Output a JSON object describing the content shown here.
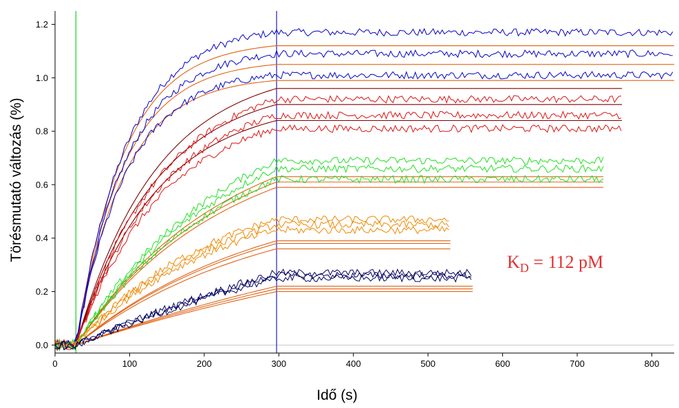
{
  "chart_data": {
    "type": "line",
    "xlabel": "Idő (s)",
    "ylabel": "Törésmutató változás (%)",
    "xlim": [
      0,
      830
    ],
    "ylim": [
      -0.03,
      1.25
    ],
    "xticks": [
      0,
      100,
      200,
      300,
      400,
      500,
      600,
      700,
      800
    ],
    "yticks": [
      0.0,
      0.2,
      0.4,
      0.6,
      0.8,
      1.0,
      1.2
    ],
    "ytick_labels": [
      "0.0",
      "0.2",
      "0.4",
      "0.6",
      "0.8",
      "1.0",
      "1.2"
    ],
    "grid": false,
    "annotation": {
      "main": "K",
      "sub": "D",
      "rest": " = 112 pM"
    },
    "markers": [
      {
        "x": 28,
        "color": "#22cc22"
      },
      {
        "x": 297,
        "color": "#2020b0"
      }
    ],
    "baseline": {
      "y": 0.0,
      "color": "#c8c8c8"
    },
    "colors": {
      "blue": "#0000c8",
      "darkred": "#800000",
      "red": "#dd1111",
      "green": "#22dd22",
      "orange": "#ee8800",
      "fit_orange": "#e06010",
      "navy": "#000060"
    },
    "groups": [
      {
        "color": "blue",
        "fit_color": "fit_orange",
        "x_end": 830,
        "k": 0.0145,
        "k_fit": 0.0155,
        "fit_plateau": [
          1.12,
          1.05,
          0.99
        ],
        "data_plateau": [
          1.17,
          1.09,
          1.01
        ]
      },
      {
        "color": "red",
        "fit_color": "darkred",
        "x_end": 760,
        "k": 0.0085,
        "k_fit": 0.0092,
        "fit_plateau": [
          0.96,
          0.9,
          0.84
        ],
        "data_plateau": [
          0.92,
          0.86,
          0.81
        ]
      },
      {
        "color": "green",
        "fit_color": "fit_orange",
        "x_end": 735,
        "k": 0.0048,
        "k_fit": 0.005,
        "fit_plateau": [
          0.63,
          0.61,
          0.59
        ],
        "data_plateau": [
          0.69,
          0.66,
          0.62
        ]
      },
      {
        "color": "orange",
        "fit_color": "fit_orange",
        "x_end": 530,
        "k": 0.0052,
        "k_fit": 0.004,
        "fit_plateau": [
          0.39,
          0.38,
          0.36
        ],
        "data_plateau": [
          0.47,
          0.45,
          0.43
        ]
      },
      {
        "color": "navy",
        "fit_color": "fit_orange",
        "x_end": 560,
        "k": 0.0017,
        "k_fit": 0.0016,
        "fit_plateau": [
          0.22,
          0.21,
          0.2
        ],
        "data_plateau": [
          0.27,
          0.26,
          0.25
        ]
      }
    ]
  }
}
